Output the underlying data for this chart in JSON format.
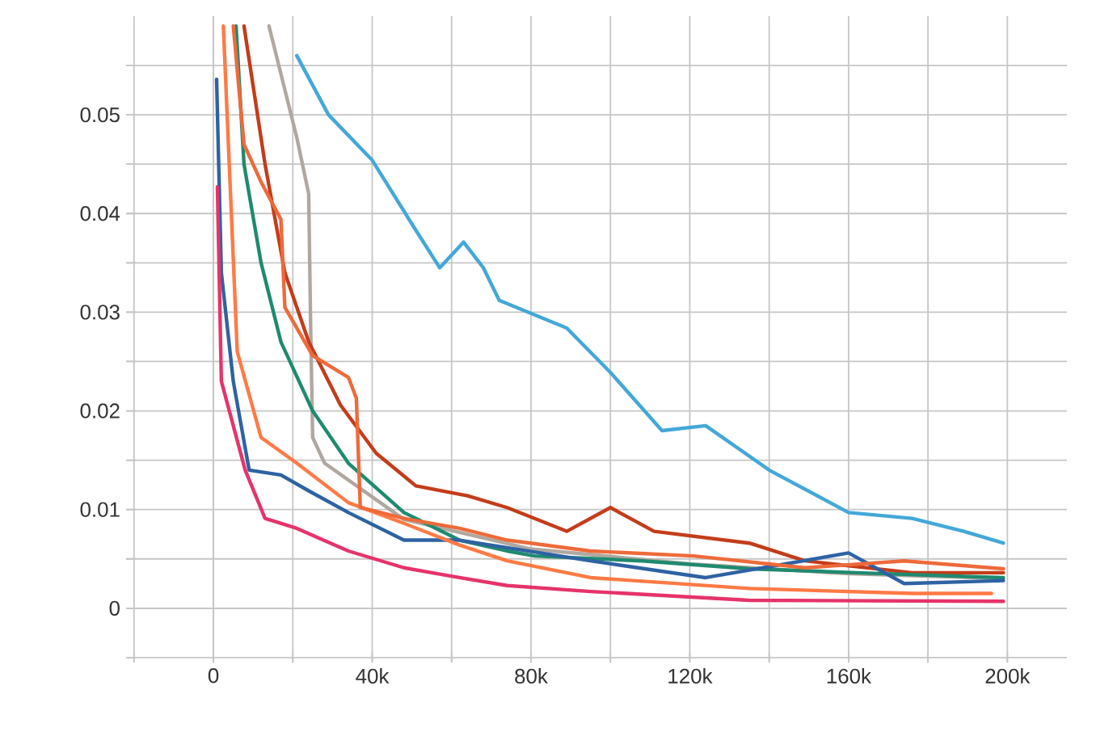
{
  "chart_data": {
    "type": "line",
    "xlim": [
      -22000,
      215000
    ],
    "ylim": [
      -0.0055,
      0.06
    ],
    "xticks": [
      {
        "value": -20000,
        "label": null
      },
      0,
      {
        "value": 20000,
        "label": null
      },
      {
        "value": 40000,
        "label": "40k"
      },
      {
        "value": 60000,
        "label": null
      },
      {
        "value": 80000,
        "label": "80k"
      },
      {
        "value": 100000,
        "label": null
      },
      {
        "value": 120000,
        "label": "120k"
      },
      {
        "value": 140000,
        "label": null
      },
      {
        "value": 160000,
        "label": "160k"
      },
      {
        "value": 180000,
        "label": null
      },
      {
        "value": 200000,
        "label": "200k"
      }
    ],
    "yticks": [
      {
        "value": -0.005,
        "label": null
      },
      0,
      {
        "value": 0.005,
        "label": null
      },
      0.01,
      {
        "value": 0.015,
        "label": null
      },
      0.02,
      {
        "value": 0.025,
        "label": null
      },
      0.03,
      {
        "value": 0.035,
        "label": null
      },
      0.04,
      {
        "value": 0.045,
        "label": null
      },
      0.05,
      {
        "value": 0.055,
        "label": null
      }
    ],
    "grid": true,
    "marker": "none",
    "line_style": "solid",
    "series": [
      {
        "color": "#43a8d8",
        "x": [
          21000,
          29000,
          40000,
          51000,
          57000,
          63000,
          68000,
          72000,
          89000,
          100000,
          113000,
          124000,
          140000,
          160000,
          176000,
          189000,
          199000
        ],
        "values": [
          0.056,
          0.05,
          0.0454,
          0.0383,
          0.0345,
          0.0371,
          0.0345,
          0.0312,
          0.0284,
          0.0239,
          0.018,
          0.0185,
          0.014,
          0.0097,
          0.0091,
          0.0078,
          0.0066
        ]
      },
      {
        "color": "#b0a8a0",
        "x": [
          14000,
          21000,
          24000,
          24500,
          25000,
          28000,
          48000,
          80000,
          120000,
          160000,
          199000
        ],
        "values": [
          0.059,
          0.0477,
          0.042,
          0.0284,
          0.0173,
          0.0147,
          0.009,
          0.006,
          0.0045,
          0.0035,
          0.003
        ]
      },
      {
        "color": "#c43c1a",
        "x": [
          7700,
          13000,
          18000,
          24000,
          32000,
          41000,
          51000,
          64000,
          74000,
          89000,
          100000,
          111000,
          135000,
          149000,
          176000,
          199000
        ],
        "values": [
          0.059,
          0.045,
          0.034,
          0.027,
          0.0206,
          0.0157,
          0.0124,
          0.0114,
          0.0102,
          0.0078,
          0.0102,
          0.0078,
          0.0066,
          0.0048,
          0.0036,
          0.0036
        ]
      },
      {
        "color": "#1f8a70",
        "x": [
          5700,
          7700,
          12000,
          17000,
          25000,
          34000,
          48000,
          62000,
          74000,
          81000,
          108000,
          135000,
          162000,
          199000
        ],
        "values": [
          0.059,
          0.045,
          0.035,
          0.027,
          0.02,
          0.0147,
          0.0097,
          0.0069,
          0.0058,
          0.0053,
          0.0048,
          0.004,
          0.0036,
          0.0031
        ]
      },
      {
        "color": "#2e62a3",
        "x": [
          800,
          2000,
          5000,
          9000,
          17000,
          24000,
          34000,
          48000,
          62000,
          95000,
          124000,
          160000,
          174000,
          199000
        ],
        "values": [
          0.0536,
          0.034,
          0.023,
          0.014,
          0.0135,
          0.0119,
          0.0097,
          0.0069,
          0.0069,
          0.0048,
          0.0031,
          0.0056,
          0.0025,
          0.0028
        ]
      },
      {
        "color": "#ff7a45",
        "x": [
          2500,
          6000,
          12000,
          21000,
          34000,
          48000,
          62000,
          74000,
          95000,
          135000,
          176000,
          196000
        ],
        "values": [
          0.059,
          0.026,
          0.0173,
          0.0147,
          0.0107,
          0.0086,
          0.0064,
          0.0048,
          0.0031,
          0.002,
          0.0015,
          0.0015
        ]
      },
      {
        "color": "#ee6a3a",
        "x": [
          5000,
          7700,
          12000,
          17000,
          18000,
          25000,
          34000,
          36000,
          37000,
          48000,
          62000,
          74000,
          95000,
          121000,
          149000,
          174000,
          199000
        ],
        "values": [
          0.059,
          0.047,
          0.0432,
          0.0394,
          0.0305,
          0.0256,
          0.0234,
          0.0213,
          0.0102,
          0.0091,
          0.0081,
          0.0069,
          0.0058,
          0.0053,
          0.0041,
          0.0048,
          0.004
        ]
      },
      {
        "color": "#e6336a",
        "x": [
          1000,
          2000,
          8000,
          13000,
          21000,
          34000,
          48000,
          62000,
          74000,
          95000,
          135000,
          199000
        ],
        "values": [
          0.0427,
          0.023,
          0.014,
          0.0091,
          0.0081,
          0.0058,
          0.0041,
          0.0031,
          0.0023,
          0.0017,
          0.0008,
          0.0007
        ]
      }
    ]
  }
}
